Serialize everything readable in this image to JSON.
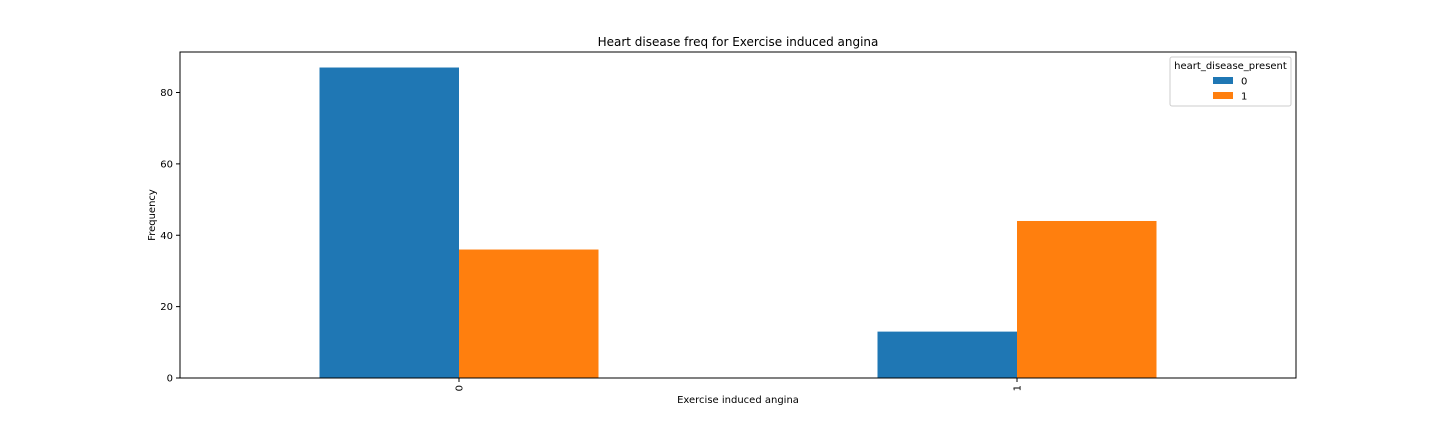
{
  "chart_data": {
    "type": "bar",
    "title": "Heart disease freq for Exercise induced angina",
    "xlabel": "Exercise induced angina",
    "ylabel": "Frequency",
    "categories": [
      "0",
      "1"
    ],
    "series": [
      {
        "name": "0",
        "values": [
          87,
          13
        ],
        "color": "#1f77b4"
      },
      {
        "name": "1",
        "values": [
          36,
          44
        ],
        "color": "#ff7f0e"
      }
    ],
    "ylim": [
      0,
      91.35
    ],
    "yticks": [
      0,
      20,
      40,
      60,
      80
    ],
    "grid": false,
    "legend": {
      "title": "heart_disease_present",
      "placement": "top-right"
    }
  }
}
